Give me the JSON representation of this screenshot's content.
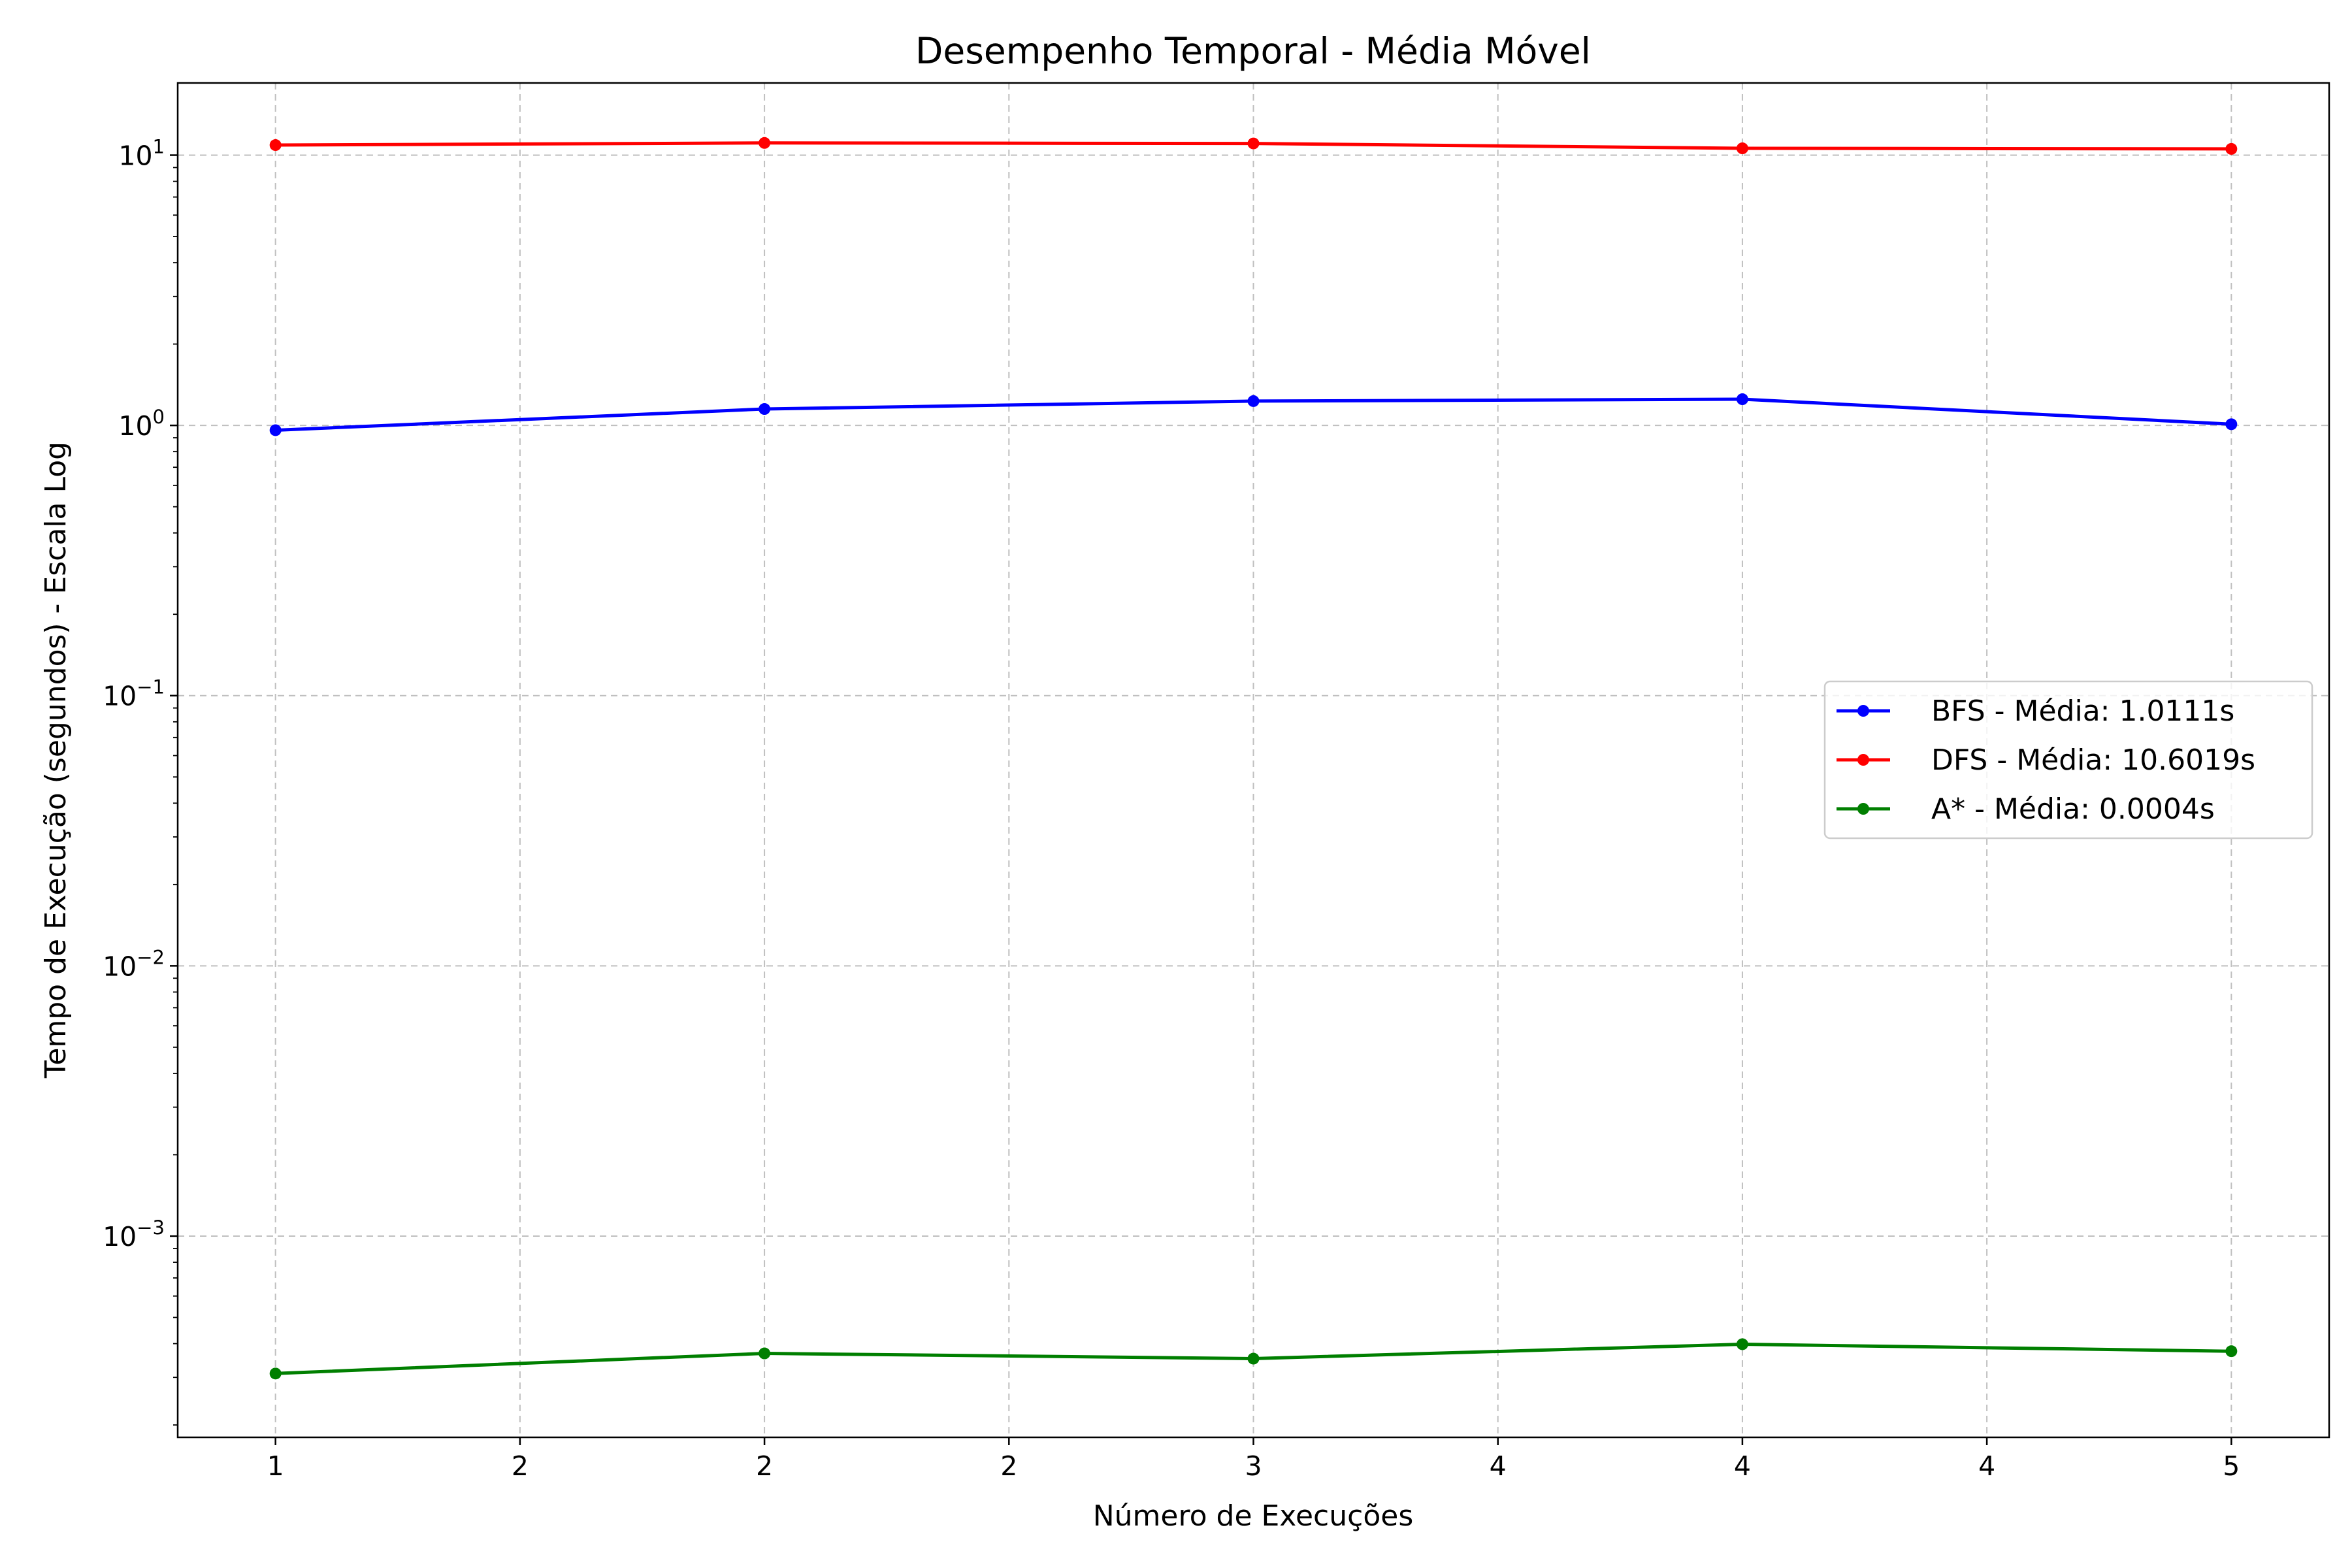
{
  "chart_data": {
    "type": "line",
    "title": "Desempenho Temporal - Média Móvel",
    "xlabel": "Número de Execuções",
    "ylabel": "Tempo de Execução (segundos) - Escala Log",
    "yscale": "log",
    "x": [
      1,
      2,
      3,
      4,
      5
    ],
    "xlim": [
      0.8,
      5.2
    ],
    "ylim": [
      0.00018,
      18.5
    ],
    "x_ticks": [
      1,
      1.5,
      2,
      2.5,
      3,
      3.5,
      4,
      4.5,
      5
    ],
    "x_tick_labels": [
      "1",
      "2",
      "2",
      "2",
      "3",
      "4",
      "4",
      "4",
      "5"
    ],
    "y_ticks": [
      0.001,
      0.01,
      0.1,
      1,
      10
    ],
    "y_tick_labels": [
      {
        "base": "10",
        "exp": "−3"
      },
      {
        "base": "10",
        "exp": "−2"
      },
      {
        "base": "10",
        "exp": "−1"
      },
      {
        "base": "10",
        "exp": "0"
      },
      {
        "base": "10",
        "exp": "1"
      }
    ],
    "grid": true,
    "legend_position": "center-right",
    "series": [
      {
        "name": "BFS - Média: 1.0111s",
        "color": "#0000ff",
        "values": [
          0.96,
          1.15,
          1.23,
          1.25,
          1.01
        ]
      },
      {
        "name": "DFS - Média: 10.6019s",
        "color": "#ff0000",
        "values": [
          10.9,
          11.1,
          11.05,
          10.6,
          10.55
        ]
      },
      {
        "name": "A* - Média: 0.0004s",
        "color": "#007f00",
        "values": [
          0.00031,
          0.000368,
          0.000352,
          0.000398,
          0.000375
        ]
      }
    ]
  }
}
